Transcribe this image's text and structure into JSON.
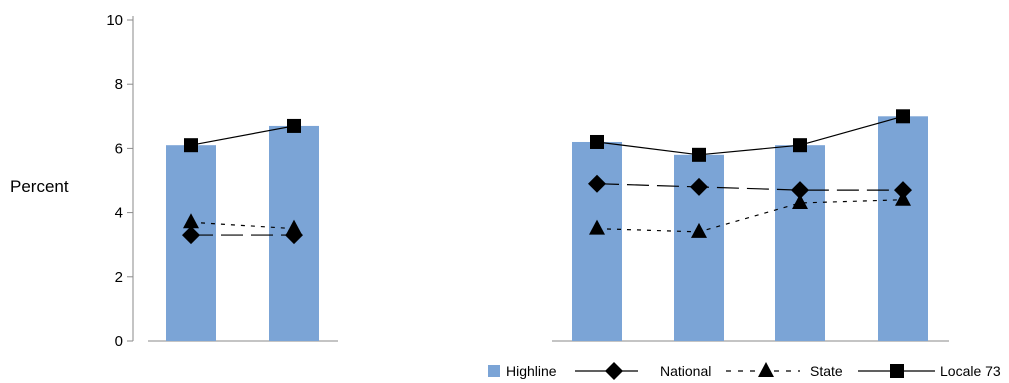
{
  "chart_data": {
    "type": "bar",
    "ylabel": "Percent",
    "ylim": [
      0,
      10
    ],
    "yticks": [
      "0",
      "2",
      "4",
      "6",
      "8",
      "10"
    ],
    "grid": false,
    "legend_position": "bottom-right",
    "colors": {
      "bar": "#7ba4d6",
      "line": "#000000"
    },
    "panels": [
      {
        "categories": [
          "",
          ""
        ],
        "series": [
          {
            "name": "Highline",
            "kind": "bar",
            "values": [
              6.1,
              6.7
            ]
          },
          {
            "name": "National",
            "kind": "line",
            "marker": "diamond",
            "dash": "long-dash",
            "values": [
              3.3,
              3.3
            ]
          },
          {
            "name": "State",
            "kind": "line",
            "marker": "triangle",
            "dash": "dotted",
            "values": [
              3.7,
              3.5
            ]
          },
          {
            "name": "Locale 73",
            "kind": "line",
            "marker": "square",
            "dash": "solid",
            "values": [
              6.1,
              6.7
            ]
          }
        ]
      },
      {
        "categories": [
          "",
          "",
          "",
          ""
        ],
        "series": [
          {
            "name": "Highline",
            "kind": "bar",
            "values": [
              6.2,
              5.8,
              6.1,
              7.0
            ]
          },
          {
            "name": "National",
            "kind": "line",
            "marker": "diamond",
            "dash": "long-dash",
            "values": [
              4.9,
              4.8,
              4.7,
              4.7
            ]
          },
          {
            "name": "State",
            "kind": "line",
            "marker": "triangle",
            "dash": "dotted",
            "values": [
              3.5,
              3.4,
              4.3,
              4.4
            ]
          },
          {
            "name": "Locale 73",
            "kind": "line",
            "marker": "square",
            "dash": "solid",
            "values": [
              6.2,
              5.8,
              6.1,
              7.0
            ]
          }
        ]
      }
    ],
    "legend": [
      "Highline",
      "National",
      "State",
      "Locale 73"
    ]
  }
}
